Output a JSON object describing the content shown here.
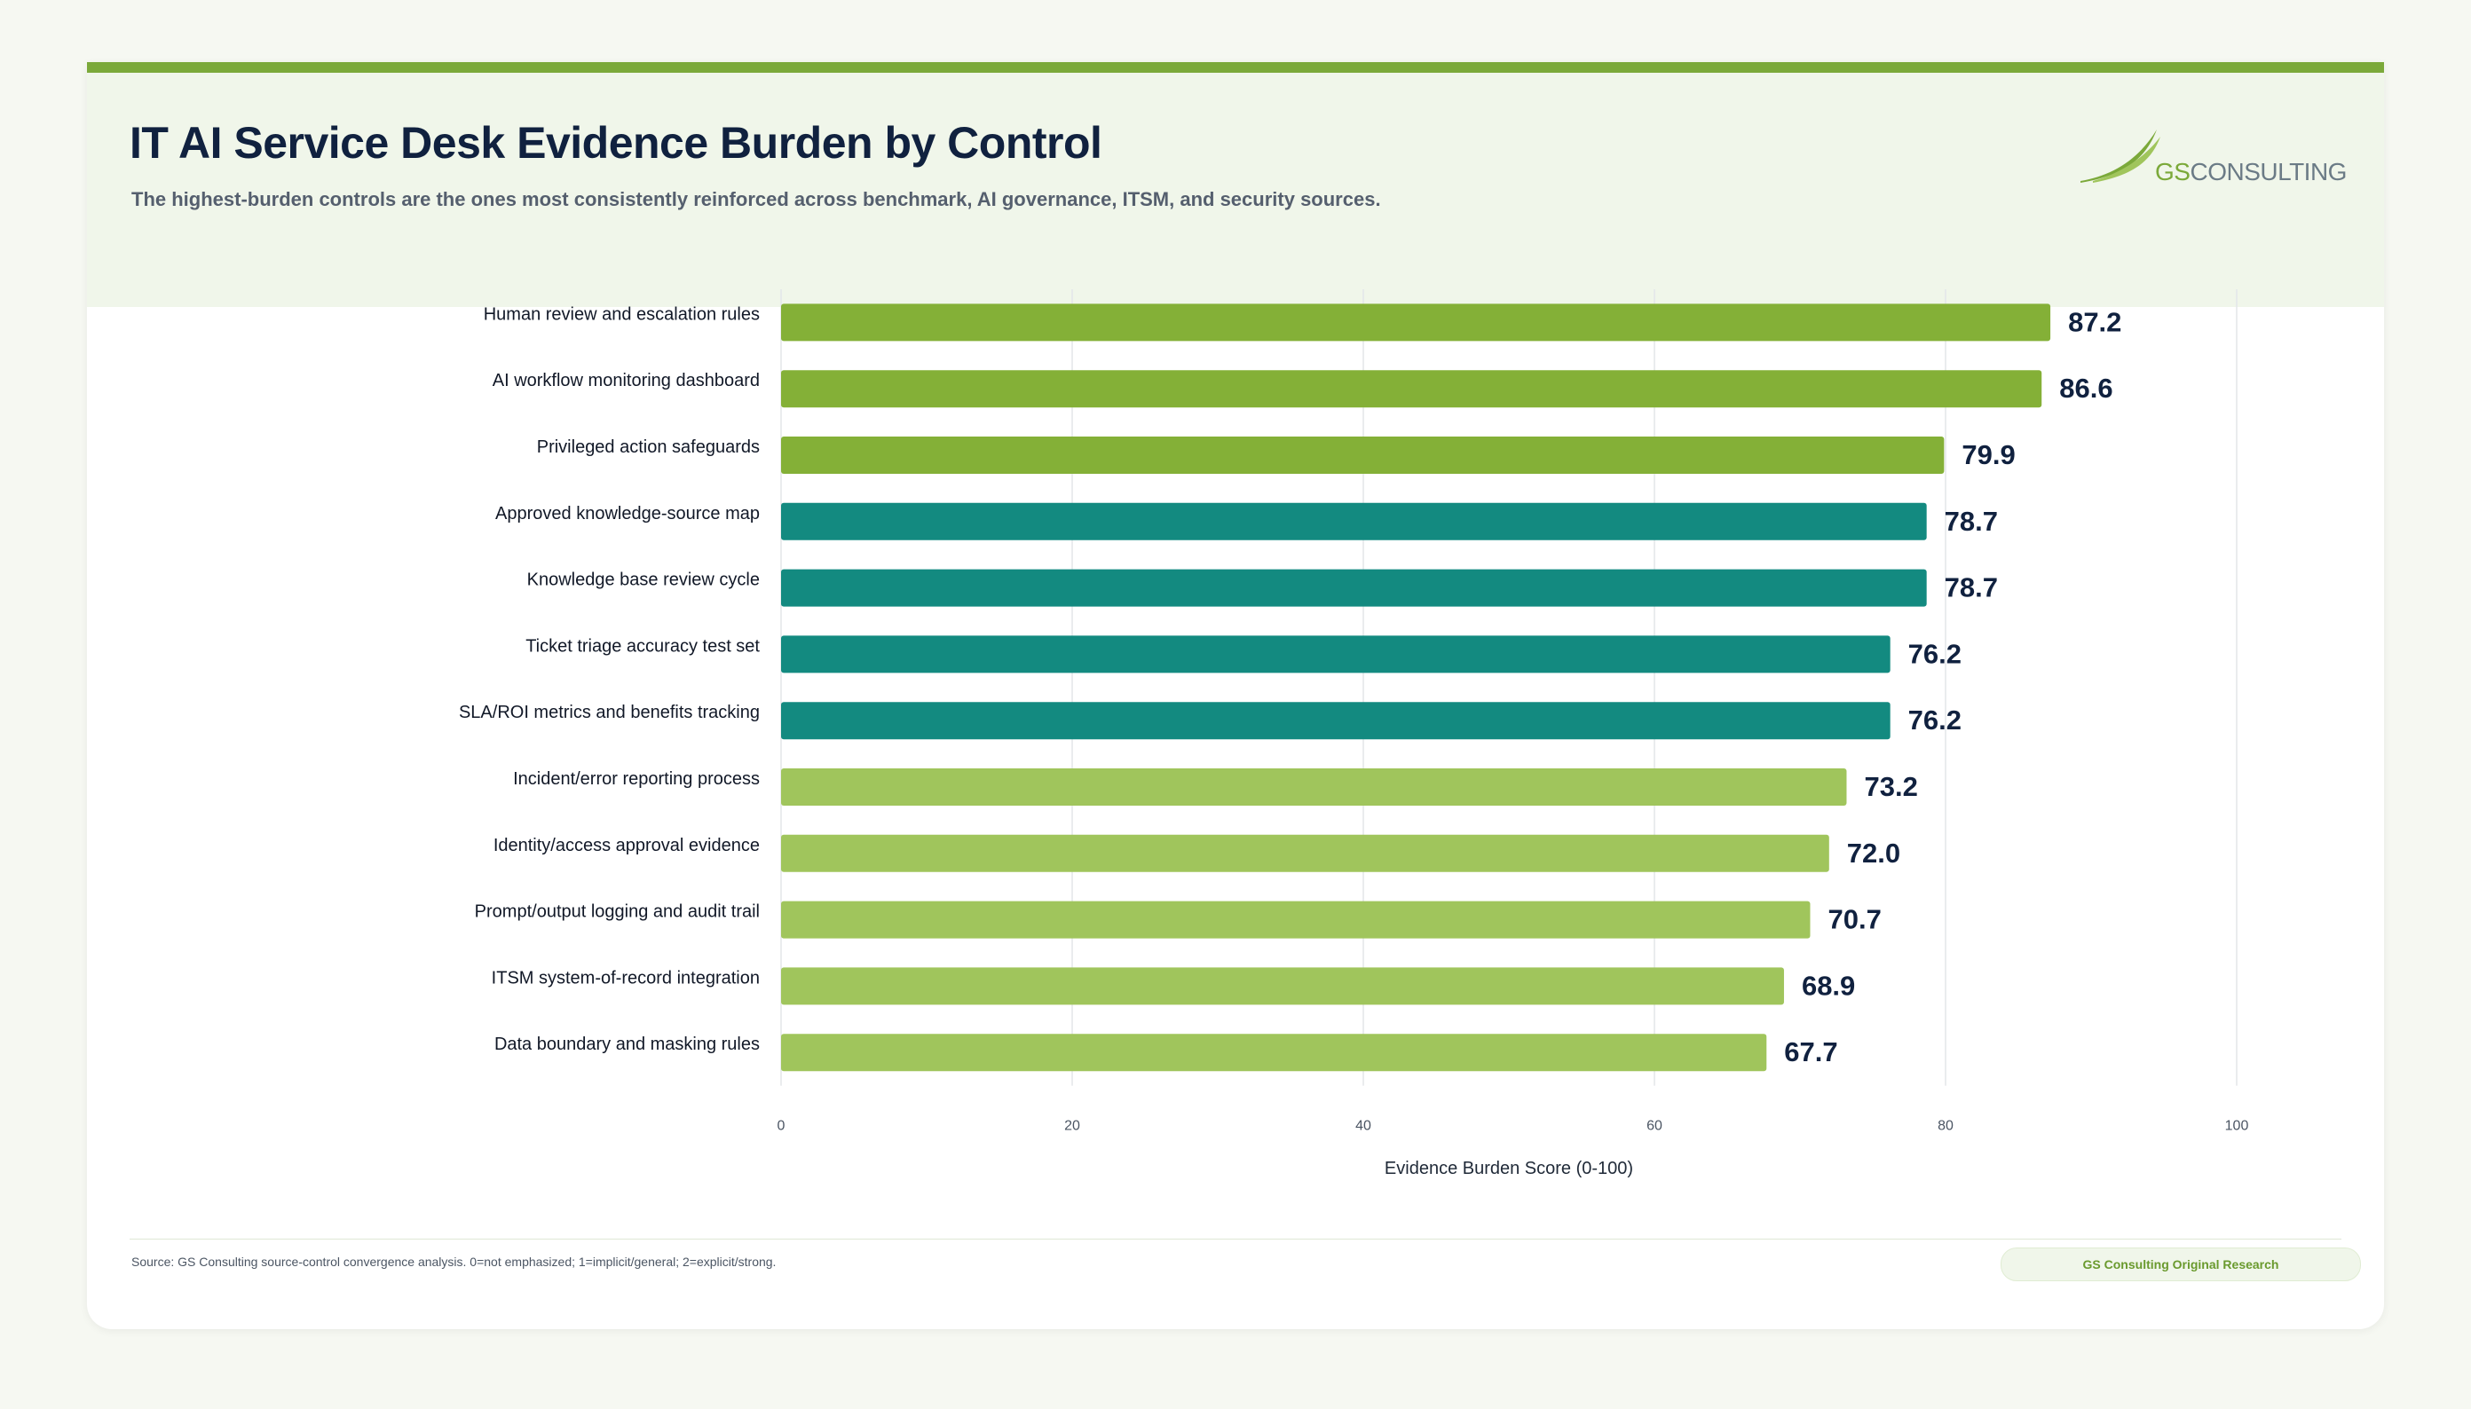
{
  "header": {
    "title": "IT AI Service Desk Evidence Burden by Control",
    "subtitle": "The highest-burden controls are the ones most consistently reinforced across benchmark, AI governance, ITSM, and security sources."
  },
  "logo": {
    "prefix": "GS",
    "suffix": "CONSULTING",
    "icon": "swoosh-leaf-icon"
  },
  "footer": {
    "source": "Source: GS Consulting source-control convergence analysis. 0=not emphasized; 1=implicit/general; 2=explicit/strong.",
    "badge": "GS Consulting Original Research"
  },
  "colors": {
    "green_dark": "#84b037",
    "teal": "#138a80",
    "green_light": "#a0c55c",
    "accent": "#7ba93a"
  },
  "chart_data": {
    "type": "bar",
    "orientation": "horizontal",
    "categories": [
      "Human review and escalation rules",
      "AI workflow monitoring dashboard",
      "Privileged action safeguards",
      "Approved knowledge-source map",
      "Knowledge base review cycle",
      "Ticket triage accuracy test set",
      "SLA/ROI metrics and benefits tracking",
      "Incident/error reporting process",
      "Identity/access approval evidence",
      "Prompt/output logging and audit trail",
      "ITSM system-of-record integration",
      "Data boundary and masking rules"
    ],
    "values": [
      87.2,
      86.6,
      79.9,
      78.7,
      78.7,
      76.2,
      76.2,
      73.2,
      72.0,
      70.7,
      68.9,
      67.7
    ],
    "value_labels": [
      "87.2",
      "86.6",
      "79.9",
      "78.7",
      "78.7",
      "76.2",
      "76.2",
      "73.2",
      "72.0",
      "70.7",
      "68.9",
      "67.7"
    ],
    "bar_colors": [
      "#84b037",
      "#84b037",
      "#84b037",
      "#138a80",
      "#138a80",
      "#138a80",
      "#138a80",
      "#a0c55c",
      "#a0c55c",
      "#a0c55c",
      "#a0c55c",
      "#a0c55c"
    ],
    "xlabel": "Evidence Burden Score (0-100)",
    "xlim": [
      0,
      100
    ],
    "xticks": [
      0,
      20,
      40,
      60,
      80,
      100
    ],
    "grid": true,
    "legend": "none"
  }
}
